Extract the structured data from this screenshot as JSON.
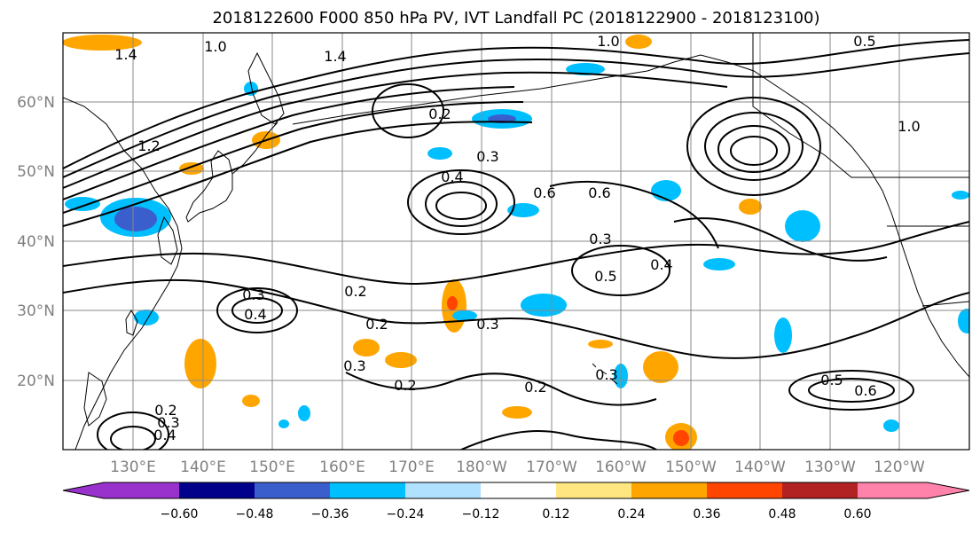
{
  "title": "2018122600 F000 850 hPa PV, IVT Landfall PC (2018122900 - 2018123100)",
  "lon_labels": [
    "130°E",
    "140°E",
    "150°E",
    "160°E",
    "170°E",
    "180°W",
    "170°W",
    "160°W",
    "150°W",
    "140°W",
    "130°W",
    "120°W"
  ],
  "lat_labels": [
    "60°N",
    "50°N",
    "40°N",
    "30°N",
    "20°N"
  ],
  "colorbar": {
    "tick_labels": [
      "−0.60",
      "−0.48",
      "−0.36",
      "−0.24",
      "−0.12",
      "0.12",
      "0.24",
      "0.36",
      "0.48",
      "0.60"
    ],
    "colors": [
      "#9932cc",
      "#00008b",
      "#3a5fcd",
      "#00bfff",
      "#b0e2ff",
      "#ffffff",
      "#ffe680",
      "#ffa500",
      "#ff4500",
      "#b22222",
      "#ff82ab"
    ]
  },
  "contour_labels": [
    "1.4",
    "1.0",
    "1.4",
    "1.0",
    "1.0",
    "1.2",
    "0.5",
    "0.2",
    "0.3",
    "0.4",
    "0.6",
    "0.6",
    "0.3",
    "0.5",
    "0.4",
    "0.3",
    "0.4",
    "0.2",
    "0.2",
    "0.3",
    "0.2",
    "0.3",
    "0.2",
    "0.3",
    "0.5",
    "0.6",
    "0.2",
    "0.3",
    "0.4"
  ],
  "chart_data": {
    "type": "map-contour",
    "title": "2018122600 F000 850 hPa PV, IVT Landfall PC (2018122900 - 2018123100)",
    "projection": "PlateCarree",
    "lon_range_deg_east": [
      120,
      250
    ],
    "lat_range": [
      10,
      70
    ],
    "contour_field": "850 hPa PV",
    "contour_levels_labeled": [
      0.2,
      0.3,
      0.4,
      0.5,
      0.6,
      1.0,
      1.2,
      1.4
    ],
    "shaded_field": "IVT Landfall PC",
    "shading_levels": [
      -0.6,
      -0.48,
      -0.36,
      -0.24,
      -0.12,
      0.12,
      0.24,
      0.36,
      0.48,
      0.6
    ],
    "colorbar_extend": "both",
    "grid": true
  }
}
